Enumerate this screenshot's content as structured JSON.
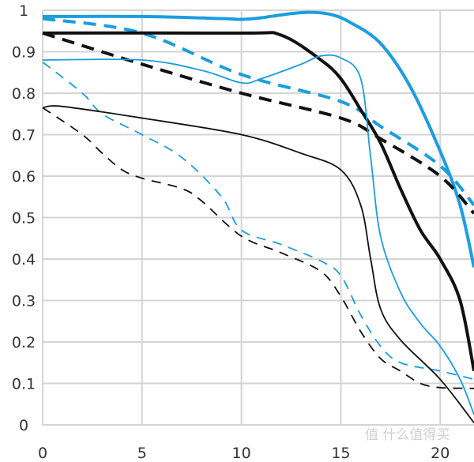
{
  "chart_data": {
    "type": "line",
    "title": "",
    "xlabel": "",
    "ylabel": "",
    "xlim": [
      0,
      21.7
    ],
    "ylim": [
      0,
      1
    ],
    "grid": true,
    "xticks": [
      "0",
      "5",
      "10",
      "15",
      "20"
    ],
    "xtick_values": [
      0,
      5,
      10,
      15,
      20
    ],
    "yticks": [
      "0",
      "0.1",
      "0.2",
      "0.3",
      "0.4",
      "0.5",
      "0.6",
      "0.7",
      "0.8",
      "0.9",
      "1"
    ],
    "ytick_values": [
      0,
      0.1,
      0.2,
      0.3,
      0.4,
      0.5,
      0.6,
      0.7,
      0.8,
      0.9,
      1
    ],
    "series": [
      {
        "name": "blue-thick-solid",
        "color": "#1a9ee0",
        "width": 4,
        "dashed": false,
        "x": [
          0,
          5,
          9,
          10,
          11,
          12.5,
          13.5,
          14.5,
          15.5,
          17,
          18.5,
          20,
          21,
          21.7
        ],
        "y": [
          0.985,
          0.985,
          0.98,
          0.978,
          0.982,
          0.992,
          0.995,
          0.99,
          0.97,
          0.92,
          0.815,
          0.66,
          0.53,
          0.38
        ]
      },
      {
        "name": "blue-thick-dashed",
        "color": "#1a9ee0",
        "width": 4,
        "dashed": true,
        "x": [
          0,
          5,
          10,
          15,
          17,
          20,
          21.7
        ],
        "y": [
          0.98,
          0.945,
          0.845,
          0.78,
          0.72,
          0.625,
          0.53
        ]
      },
      {
        "name": "black-thick-solid",
        "color": "#111111",
        "width": 4,
        "dashed": false,
        "x": [
          0,
          10,
          12,
          14,
          15,
          16,
          17,
          18,
          19,
          20,
          21,
          21.7
        ],
        "y": [
          0.945,
          0.945,
          0.94,
          0.88,
          0.835,
          0.76,
          0.68,
          0.57,
          0.47,
          0.4,
          0.3,
          0.13
        ]
      },
      {
        "name": "black-thick-dashed",
        "color": "#111111",
        "width": 4,
        "dashed": true,
        "x": [
          0,
          5,
          10,
          15,
          17,
          20,
          21.7
        ],
        "y": [
          0.945,
          0.87,
          0.8,
          0.74,
          0.69,
          0.6,
          0.51
        ]
      },
      {
        "name": "blue-thin-solid",
        "color": "#1a9ee0",
        "width": 1.8,
        "dashed": false,
        "x": [
          0,
          5,
          8,
          10,
          11,
          13,
          14,
          15,
          16,
          16.5,
          17,
          18,
          19,
          20,
          21,
          21.7
        ],
        "y": [
          0.88,
          0.88,
          0.855,
          0.825,
          0.835,
          0.87,
          0.89,
          0.885,
          0.835,
          0.645,
          0.455,
          0.32,
          0.245,
          0.19,
          0.11,
          0.025
        ]
      },
      {
        "name": "blue-thin-dashed",
        "color": "#1a9ee0",
        "width": 1.8,
        "dashed": true,
        "x": [
          0,
          2,
          3,
          5,
          7,
          9,
          10,
          12,
          14,
          15,
          16,
          17,
          18,
          20,
          21.7
        ],
        "y": [
          0.875,
          0.8,
          0.75,
          0.7,
          0.645,
          0.55,
          0.47,
          0.435,
          0.395,
          0.36,
          0.265,
          0.19,
          0.15,
          0.13,
          0.11
        ]
      },
      {
        "name": "black-thin-solid",
        "color": "#111111",
        "width": 1.8,
        "dashed": false,
        "x": [
          0,
          1,
          5,
          10,
          13,
          15,
          16,
          16.5,
          17,
          18,
          20,
          21.7
        ],
        "y": [
          0.765,
          0.768,
          0.74,
          0.7,
          0.655,
          0.615,
          0.53,
          0.4,
          0.28,
          0.205,
          0.11,
          0.005
        ]
      },
      {
        "name": "black-thin-dashed",
        "color": "#111111",
        "width": 1.8,
        "dashed": true,
        "x": [
          0,
          2,
          3,
          4,
          5,
          7,
          8,
          10,
          12,
          14,
          15,
          16,
          17,
          18,
          19,
          20,
          21.7
        ],
        "y": [
          0.765,
          0.7,
          0.655,
          0.615,
          0.595,
          0.57,
          0.54,
          0.455,
          0.415,
          0.37,
          0.31,
          0.225,
          0.16,
          0.13,
          0.1,
          0.09,
          0.088
        ]
      }
    ]
  },
  "watermark": "值 什么值得买"
}
